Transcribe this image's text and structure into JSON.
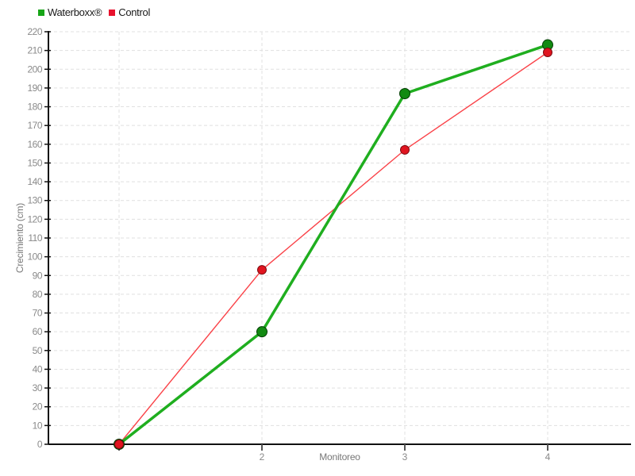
{
  "legend": {
    "items": [
      {
        "label": "Waterboxx®",
        "color": "#17a517"
      },
      {
        "label": "Control",
        "color": "#e8112d"
      }
    ]
  },
  "palette": {
    "background": "#ffffff",
    "grid": "#e0e0e0",
    "axis": "#111111",
    "tick_mark": "#555555",
    "tick_text": "#8a8a8a",
    "axis_label_text": "#787878"
  },
  "chart_data": {
    "type": "line",
    "title": "",
    "xlabel": "Monitoreo",
    "ylabel": "Crecimiento (cm)",
    "x": [
      1,
      2,
      3,
      4
    ],
    "x_tick_labels": [
      "",
      "2",
      "3",
      "4"
    ],
    "y_ticks": [
      0,
      10,
      20,
      30,
      40,
      50,
      60,
      70,
      80,
      90,
      100,
      110,
      120,
      130,
      140,
      150,
      160,
      170,
      180,
      190,
      200,
      210,
      220
    ],
    "ylim": [
      0,
      220
    ],
    "grid": true,
    "legend_position": "top-left",
    "series": [
      {
        "name": "Waterboxx®",
        "values": [
          0,
          60,
          187,
          213
        ],
        "line_color": "#1fae1f",
        "line_width": 3.5,
        "marker_color": "#128a12",
        "marker_stroke": "#053f05",
        "marker_radius": 6.5
      },
      {
        "name": "Control",
        "values": [
          0,
          93,
          157,
          209
        ],
        "line_color": "#fa4248",
        "line_width": 1.4,
        "marker_color": "#e0141f",
        "marker_stroke": "#7b0a10",
        "marker_radius": 5.5
      }
    ]
  }
}
